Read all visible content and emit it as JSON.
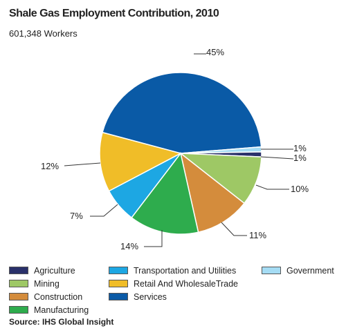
{
  "header": {
    "title": "Shale Gas Employment Contribution, 2010",
    "subtitle": "601,348 Workers"
  },
  "chart_data": {
    "type": "pie",
    "title": "Shale Gas Employment Contribution, 2010",
    "subtitle": "601,348 Workers",
    "slices": [
      {
        "name": "Services",
        "value": 45,
        "label": "45%",
        "color": "#0a5aa6"
      },
      {
        "name": "Government",
        "value": 1,
        "label": "1%",
        "color": "#a5dcf4"
      },
      {
        "name": "Agriculture",
        "value": 1,
        "label": "1%",
        "color": "#29306a"
      },
      {
        "name": "Mining",
        "value": 10,
        "label": "10%",
        "color": "#9ec865"
      },
      {
        "name": "Construction",
        "value": 11,
        "label": "11%",
        "color": "#d48c3c"
      },
      {
        "name": "Manufacturing",
        "value": 14,
        "label": "14%",
        "color": "#2eac4d"
      },
      {
        "name": "Transportation and Utilities",
        "value": 7,
        "label": "7%",
        "color": "#1da7e3"
      },
      {
        "name": "Retail And WholesaleTrade",
        "value": 12,
        "label": "12%",
        "color": "#f0bd28"
      }
    ],
    "legend_placement": "bottom"
  },
  "legend": [
    {
      "label": "Agriculture",
      "color": "#29306a"
    },
    {
      "label": "Transportation and Utilities",
      "color": "#1da7e3"
    },
    {
      "label": "Government",
      "color": "#a5dcf4"
    },
    {
      "label": "Mining",
      "color": "#9ec865"
    },
    {
      "label": "Retail And WholesaleTrade",
      "color": "#f0bd28"
    },
    {
      "label": "Construction",
      "color": "#d48c3c"
    },
    {
      "label": "Services",
      "color": "#0a5aa6"
    },
    {
      "label": "Manufacturing",
      "color": "#2eac4d"
    }
  ],
  "source": "Source: IHS Global Insight"
}
